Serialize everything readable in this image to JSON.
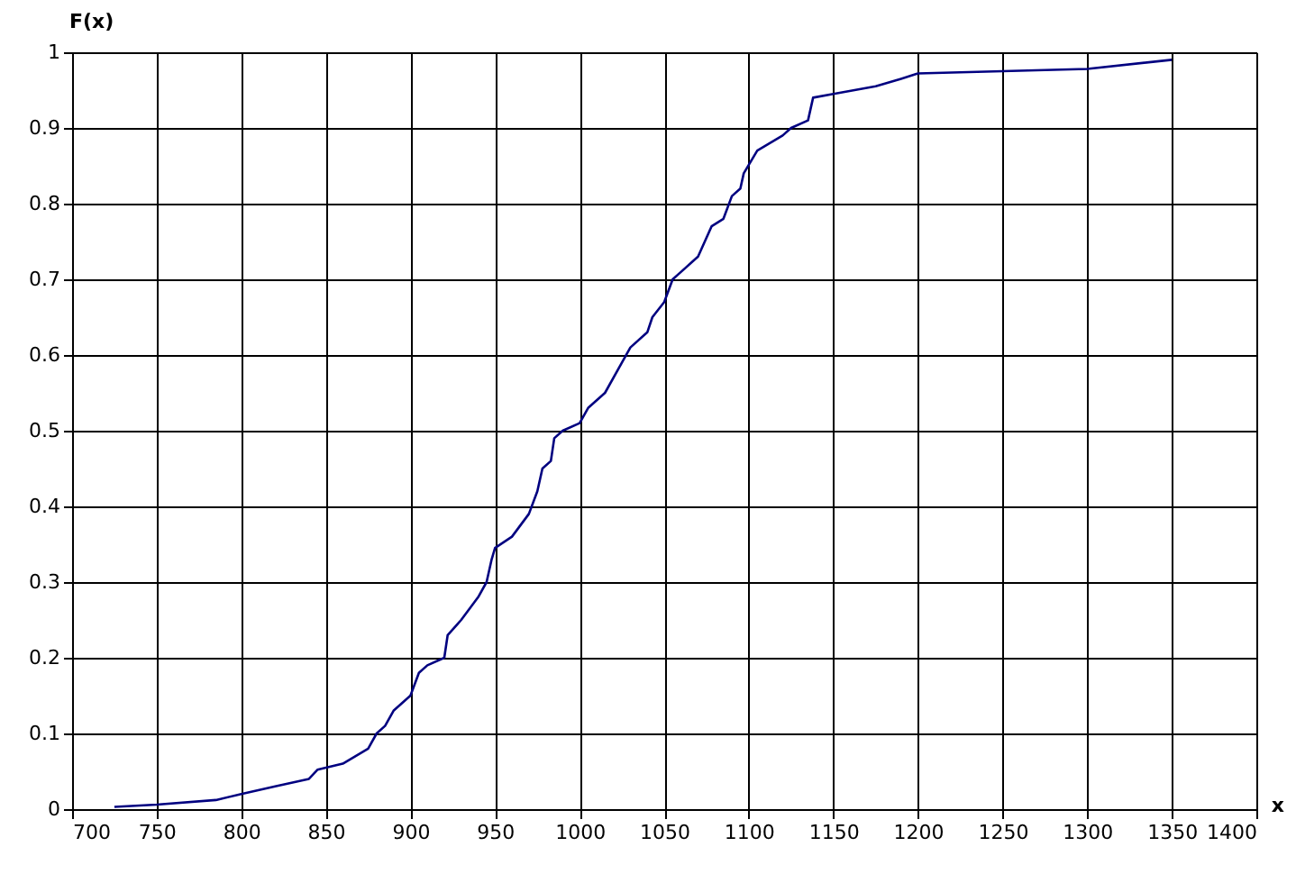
{
  "chart_data": {
    "type": "line",
    "xlabel": "x",
    "ylabel": "F(x)",
    "xlim": [
      700,
      1400
    ],
    "xticks": [
      700,
      750,
      800,
      850,
      900,
      950,
      1000,
      1050,
      1100,
      1150,
      1200,
      1250,
      1300,
      1350,
      1400
    ],
    "ylim": [
      0,
      1
    ],
    "yticks": [
      0,
      0.1,
      0.2,
      0.3,
      0.4,
      0.5,
      0.6,
      0.7,
      0.8,
      0.9,
      1
    ],
    "grid": true,
    "legend": false,
    "marker": "none",
    "line_style": "solid",
    "x": [
      725,
      750,
      785,
      800,
      820,
      840,
      845,
      860,
      875,
      880,
      885,
      890,
      900,
      905,
      910,
      920,
      922,
      930,
      940,
      945,
      948,
      950,
      960,
      970,
      975,
      978,
      983,
      985,
      990,
      1000,
      1005,
      1015,
      1025,
      1030,
      1040,
      1043,
      1050,
      1055,
      1060,
      1070,
      1078,
      1085,
      1090,
      1095,
      1097,
      1105,
      1120,
      1125,
      1135,
      1138,
      1150,
      1175,
      1190,
      1200,
      1250,
      1300,
      1350
    ],
    "series": [
      {
        "color": "#000080",
        "values": [
          0.003,
          0.006,
          0.012,
          0.02,
          0.03,
          0.04,
          0.052,
          0.06,
          0.08,
          0.1,
          0.11,
          0.13,
          0.15,
          0.18,
          0.19,
          0.2,
          0.23,
          0.25,
          0.28,
          0.3,
          0.33,
          0.345,
          0.36,
          0.39,
          0.42,
          0.45,
          0.46,
          0.49,
          0.5,
          0.51,
          0.53,
          0.55,
          0.59,
          0.61,
          0.63,
          0.65,
          0.67,
          0.7,
          0.71,
          0.73,
          0.77,
          0.78,
          0.81,
          0.82,
          0.84,
          0.87,
          0.89,
          0.9,
          0.91,
          0.94,
          0.945,
          0.955,
          0.965,
          0.972,
          0.975,
          0.978,
          0.99
        ]
      }
    ]
  }
}
